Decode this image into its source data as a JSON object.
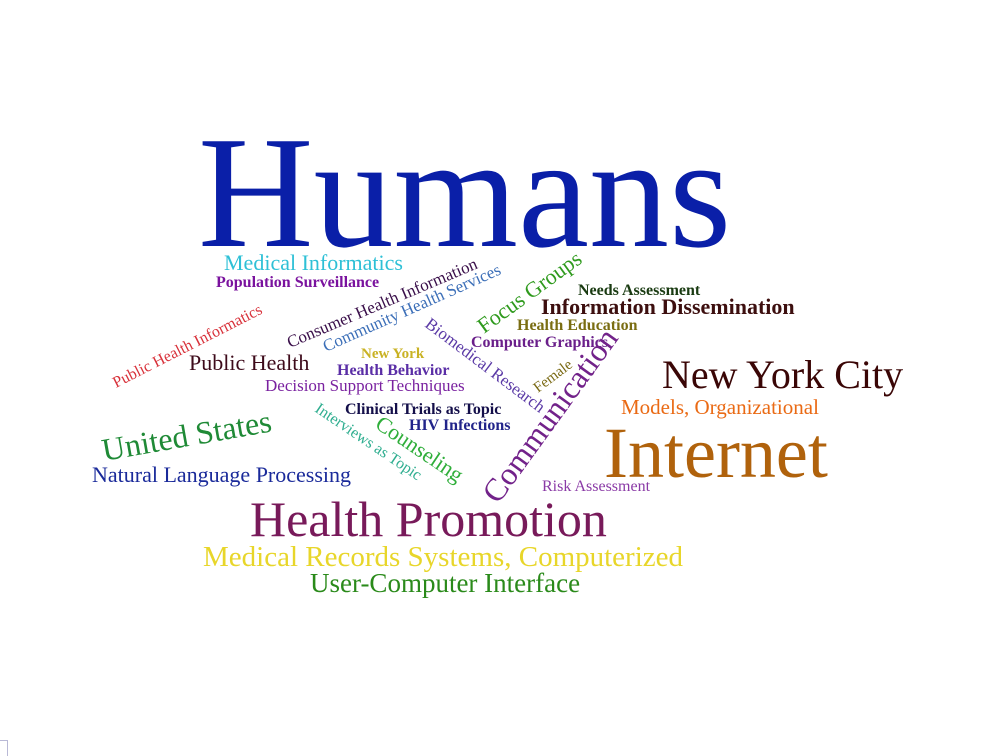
{
  "words": {
    "humans": {
      "text": "Humans",
      "color": "#0a1fa8"
    },
    "medical_informatics": {
      "text": "Medical Informatics",
      "color": "#2ec0d6"
    },
    "population_surveillance": {
      "text": "Population Surveillance",
      "color": "#7a129e"
    },
    "public_health_informatics": {
      "text": "Public Health Informatics",
      "color": "#d8313a"
    },
    "consumer_health_information": {
      "text": "Consumer Health Information",
      "color": "#3a0f4a"
    },
    "community_health_services": {
      "text": "Community Health Services",
      "color": "#3c6fb8"
    },
    "focus_groups": {
      "text": "Focus Groups",
      "color": "#2f9a1d"
    },
    "needs_assessment": {
      "text": "Needs Assessment",
      "color": "#1a3b12"
    },
    "information_dissemination": {
      "text": "Information Dissemination",
      "color": "#3d0f0f"
    },
    "health_education": {
      "text": "Health Education",
      "color": "#7a6d12"
    },
    "computer_graphics": {
      "text": "Computer Graphics",
      "color": "#6a1f8a"
    },
    "public_health": {
      "text": "Public Health",
      "color": "#3d0a1a"
    },
    "new_york": {
      "text": "New York",
      "color": "#c9b223"
    },
    "biomedical_research": {
      "text": "Biomedical Research",
      "color": "#5b3aa6"
    },
    "health_behavior": {
      "text": "Health Behavior",
      "color": "#5a2ea6"
    },
    "female": {
      "text": "Female",
      "color": "#7a6a14"
    },
    "communication": {
      "text": "Communication",
      "color": "#72228a"
    },
    "new_york_city": {
      "text": "New York City",
      "color": "#3a0606"
    },
    "decision_support_techniques": {
      "text": "Decision Support Techniques",
      "color": "#7a22a0"
    },
    "models_organizational": {
      "text": "Models, Organizational",
      "color": "#ea6a14"
    },
    "united_states": {
      "text": "United States",
      "color": "#1f8a36"
    },
    "interviews_as_topic": {
      "text": "Interviews as Topic",
      "color": "#2fae90"
    },
    "clinical_trials_as_topic": {
      "text": "Clinical Trials as Topic",
      "color": "#140f4a"
    },
    "hiv_infections": {
      "text": "HIV Infections",
      "color": "#22248a"
    },
    "counseling": {
      "text": "Counseling",
      "color": "#2fae3a"
    },
    "internet": {
      "text": "Internet",
      "color": "#b0620c"
    },
    "natural_language_processing": {
      "text": "Natural Language Processing",
      "color": "#1a2a9a"
    },
    "risk_assessment": {
      "text": "Risk Assessment",
      "color": "#8a3aa6"
    },
    "health_promotion": {
      "text": "Health Promotion",
      "color": "#781a5a"
    },
    "medical_records_systems": {
      "text": "Medical Records Systems, Computerized",
      "color": "#e8d62a"
    },
    "user_computer_interface": {
      "text": "User-Computer Interface",
      "color": "#2a8a1a"
    }
  }
}
